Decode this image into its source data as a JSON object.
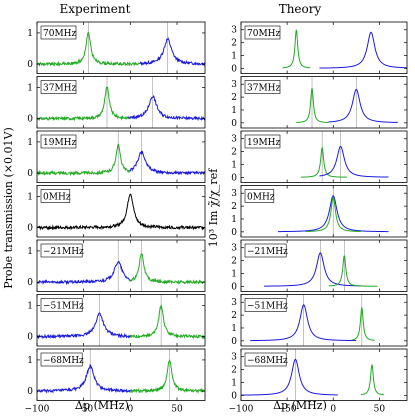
{
  "figure": {
    "left_title": "Experiment",
    "right_title": "Theory",
    "left_ylabel": "Probe transmission (×0.01V)",
    "right_ylabel": "10³ Im χ̃/χ_ref",
    "xlabel": "Δp (MHz)"
  },
  "chart_data": [
    {
      "type": "line",
      "title": "Experiment",
      "xlabel": "Δp (MHz)",
      "ylabel": "Probe transmission (×0.01V)",
      "xlim": [
        -100,
        80
      ],
      "xticks": [
        -100,
        -50,
        0,
        50
      ],
      "panels": [
        {
          "label": "70MHz",
          "ylim": [
            -0.3,
            1.35
          ],
          "yticks": [
            0,
            1
          ],
          "vlines": [
            -45,
            40
          ],
          "series": [
            {
              "color": "#22aa22",
              "x0": -100,
              "x1": 10,
              "center": -45,
              "width": 3,
              "amp": 1.0
            },
            {
              "color": "#1a1add",
              "x0": 10,
              "x1": 80,
              "center": 40,
              "width": 5,
              "amp": 0.8
            }
          ]
        },
        {
          "label": "37MHz",
          "ylim": [
            -0.3,
            1.35
          ],
          "yticks": [
            0,
            1
          ],
          "vlines": [
            -25,
            24
          ],
          "series": [
            {
              "color": "#22aa22",
              "x0": -100,
              "x1": -2,
              "center": -25,
              "width": 3,
              "amp": 1.0
            },
            {
              "color": "#1a1add",
              "x0": -2,
              "x1": 80,
              "center": 24,
              "width": 5,
              "amp": 0.72
            }
          ]
        },
        {
          "label": "19MHz",
          "ylim": [
            -0.3,
            1.35
          ],
          "yticks": [
            0,
            1
          ],
          "vlines": [
            -13,
            12
          ],
          "series": [
            {
              "color": "#22aa22",
              "x0": -100,
              "x1": -1,
              "center": -13,
              "width": 3,
              "amp": 0.9
            },
            {
              "color": "#1a1add",
              "x0": -1,
              "x1": 80,
              "center": 12,
              "width": 5,
              "amp": 0.68
            }
          ]
        },
        {
          "label": "0MHz",
          "ylim": [
            -0.3,
            1.35
          ],
          "yticks": [
            0,
            1
          ],
          "vlines": [],
          "series": [
            {
              "color": "#000000",
              "x0": -100,
              "x1": 80,
              "center": 0,
              "width": 4,
              "amp": 1.1
            }
          ]
        },
        {
          "label": "−21MHz",
          "ylim": [
            -0.3,
            1.35
          ],
          "yticks": [
            0,
            1
          ],
          "vlines": [
            -13,
            12
          ],
          "series": [
            {
              "color": "#1a1add",
              "x0": -100,
              "x1": 0,
              "center": -13,
              "width": 5,
              "amp": 0.65
            },
            {
              "color": "#22aa22",
              "x0": 0,
              "x1": 80,
              "center": 12,
              "width": 3,
              "amp": 0.95
            }
          ]
        },
        {
          "label": "−51MHz",
          "ylim": [
            -0.3,
            1.35
          ],
          "yticks": [
            0,
            1
          ],
          "vlines": [
            -33,
            33
          ],
          "series": [
            {
              "color": "#1a1add",
              "x0": -100,
              "x1": 0,
              "center": -33,
              "width": 5,
              "amp": 0.75
            },
            {
              "color": "#22aa22",
              "x0": 0,
              "x1": 80,
              "center": 33,
              "width": 3,
              "amp": 1.0
            }
          ]
        },
        {
          "label": "−68MHz",
          "ylim": [
            -0.3,
            1.35
          ],
          "yticks": [
            0,
            1
          ],
          "vlines": [
            -43,
            42
          ],
          "series": [
            {
              "color": "#1a1add",
              "x0": -100,
              "x1": 0,
              "center": -43,
              "width": 5,
              "amp": 0.8
            },
            {
              "color": "#22aa22",
              "x0": 0,
              "x1": 80,
              "center": 42,
              "width": 3,
              "amp": 1.0
            }
          ]
        }
      ]
    },
    {
      "type": "line",
      "title": "Theory",
      "xlabel": "Δp (MHz)",
      "ylabel": "10³ Im χ̃/χ_ref",
      "xlim": [
        -100,
        80
      ],
      "xticks": [
        -100,
        -50,
        0,
        50
      ],
      "panels": [
        {
          "label": "70MHz",
          "ylim": [
            -0.4,
            3.6
          ],
          "yticks": [
            0,
            1,
            2,
            3
          ],
          "vlines": [],
          "series": [
            {
              "color": "#22aa22",
              "x0": -55,
              "x1": -25,
              "center": -40,
              "width": 1.8,
              "amp": 3.0
            },
            {
              "color": "#1a1add",
              "x0": -15,
              "x1": 80,
              "center": 41,
              "width": 5,
              "amp": 2.8
            }
          ]
        },
        {
          "label": "37MHz",
          "ylim": [
            -0.4,
            3.6
          ],
          "yticks": [
            0,
            1,
            2,
            3
          ],
          "vlines": [
            -23,
            25
          ],
          "series": [
            {
              "color": "#22aa22",
              "x0": -40,
              "x1": -5,
              "center": -23,
              "width": 1.8,
              "amp": 2.7
            },
            {
              "color": "#1a1add",
              "x0": -5,
              "x1": 70,
              "center": 25,
              "width": 5,
              "amp": 2.6
            }
          ]
        },
        {
          "label": "19MHz",
          "ylim": [
            -0.4,
            3.6
          ],
          "yticks": [
            0,
            1,
            2,
            3
          ],
          "vlines": [
            -12,
            8
          ],
          "series": [
            {
              "color": "#22aa22",
              "x0": -35,
              "x1": 15,
              "center": -12,
              "width": 2,
              "amp": 2.3
            },
            {
              "color": "#1a1add",
              "x0": -15,
              "x1": 60,
              "center": 8,
              "width": 5,
              "amp": 2.4
            }
          ]
        },
        {
          "label": "0MHz",
          "ylim": [
            -0.4,
            3.6
          ],
          "yticks": [
            0,
            1,
            2,
            3
          ],
          "vlines": [
            0
          ],
          "series": [
            {
              "color": "#1a1add",
              "x0": -60,
              "x1": 60,
              "center": 0,
              "width": 5,
              "amp": 2.8
            },
            {
              "color": "#22aa22",
              "x0": -30,
              "x1": 30,
              "center": 0,
              "width": 3,
              "amp": 2.7
            }
          ]
        },
        {
          "label": "−21MHz",
          "ylim": [
            -0.4,
            3.6
          ],
          "yticks": [
            0,
            1,
            2,
            3
          ],
          "vlines": [
            -14,
            12
          ],
          "series": [
            {
              "color": "#1a1add",
              "x0": -75,
              "x1": 35,
              "center": -14,
              "width": 5,
              "amp": 2.6
            },
            {
              "color": "#22aa22",
              "x0": -5,
              "x1": 48,
              "center": 12,
              "width": 2,
              "amp": 2.4
            }
          ]
        },
        {
          "label": "−51MHz",
          "ylim": [
            -0.4,
            3.6
          ],
          "yticks": [
            0,
            1,
            2,
            3
          ],
          "vlines": [
            -32,
            31
          ],
          "series": [
            {
              "color": "#1a1add",
              "x0": -90,
              "x1": 25,
              "center": -32,
              "width": 5,
              "amp": 2.8
            },
            {
              "color": "#22aa22",
              "x0": 20,
              "x1": 45,
              "center": 31,
              "width": 1.8,
              "amp": 2.6
            }
          ]
        },
        {
          "label": "−68MHz",
          "ylim": [
            -0.4,
            3.6
          ],
          "yticks": [
            0,
            1,
            2,
            3
          ],
          "vlines": [
            -41
          ],
          "series": [
            {
              "color": "#1a1add",
              "x0": -100,
              "x1": 5,
              "center": -41,
              "width": 5,
              "amp": 2.8
            },
            {
              "color": "#22aa22",
              "x0": 30,
              "x1": 55,
              "center": 42,
              "width": 1.8,
              "amp": 2.4
            }
          ]
        }
      ]
    }
  ]
}
